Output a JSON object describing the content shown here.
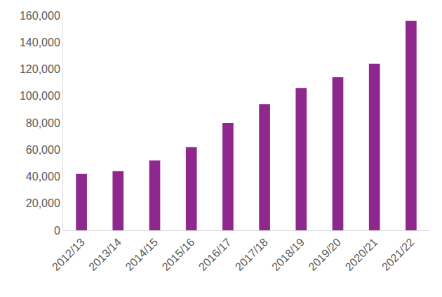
{
  "chart_data": {
    "type": "bar",
    "categories": [
      "2012/13",
      "2013/14",
      "2014/15",
      "2015/16",
      "2016/17",
      "2017/18",
      "2018/19",
      "2019/20",
      "2020/21",
      "2021/22"
    ],
    "values": [
      42000,
      44000,
      52000,
      62000,
      80000,
      94000,
      106000,
      114000,
      124000,
      156000
    ],
    "color": "#8e278e",
    "ylim": [
      0,
      160000
    ],
    "yticks": [
      0,
      {
        "value": 20000,
        "label": "20,000"
      },
      {
        "value": 40000,
        "label": "40,000"
      },
      {
        "value": 60000,
        "label": "60,000"
      },
      {
        "value": 80000,
        "label": "80,000"
      },
      {
        "value": 100000,
        "label": "100,000"
      },
      {
        "value": 120000,
        "label": "120,000"
      },
      {
        "value": 140000,
        "label": "140,000"
      },
      {
        "value": 160000,
        "label": "160,000"
      }
    ],
    "grid": false
  }
}
